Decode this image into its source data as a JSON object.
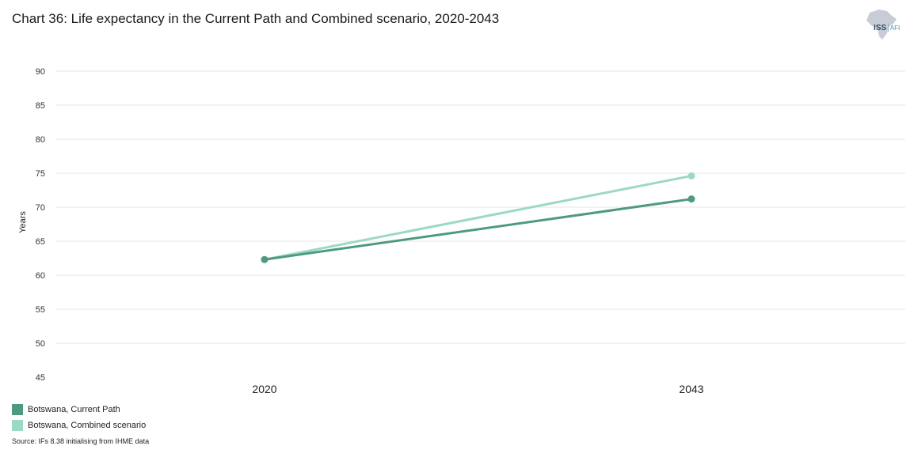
{
  "header": {
    "title": "Chart 36: Life expectancy in the Current Path and Combined scenario, 2020-2043",
    "logo": {
      "primary": "ISS",
      "secondary": "AFI"
    }
  },
  "chart_data": {
    "type": "line",
    "title": "Chart 36: Life expectancy in the Current Path and Combined scenario, 2020-2043",
    "xlabel": "",
    "ylabel": "Years",
    "categories": [
      "2020",
      "2043"
    ],
    "yticks": [
      45,
      50,
      55,
      60,
      65,
      70,
      75,
      80,
      85,
      90
    ],
    "ylim": [
      45,
      90
    ],
    "grid": true,
    "legend_position": "bottom-left",
    "series": [
      {
        "name": "Botswana, Current Path",
        "values": [
          62.3,
          71.2
        ],
        "color": "#4e9a80"
      },
      {
        "name": "Botswana, Combined scenario",
        "values": [
          62.3,
          74.6
        ],
        "color": "#9bd9c3"
      }
    ]
  },
  "footer": {
    "source": "Source: IFs 8.38 initialising from IHME data"
  }
}
